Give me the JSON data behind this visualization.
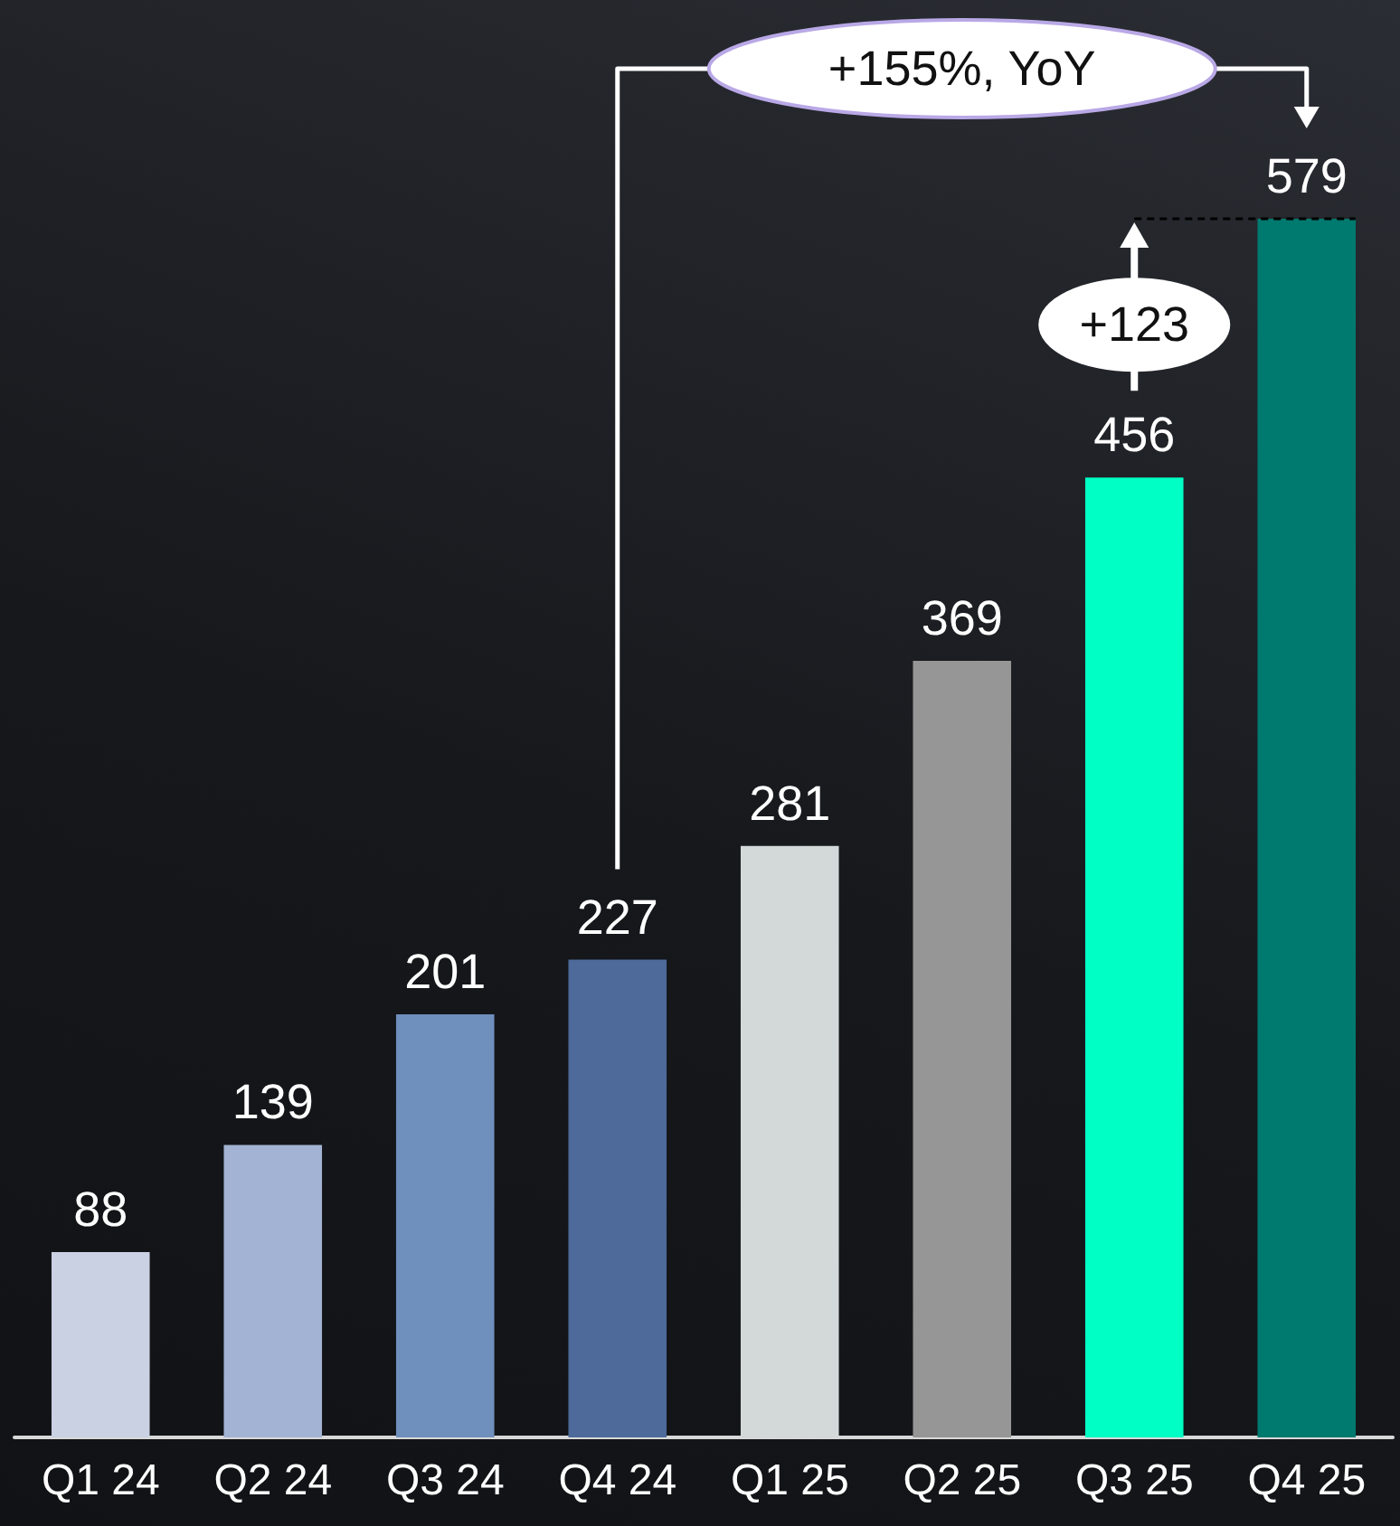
{
  "chart_data": {
    "type": "bar",
    "categories": [
      "Q1 24",
      "Q2 24",
      "Q3 24",
      "Q4 24",
      "Q1 25",
      "Q2 25",
      "Q3 25",
      "Q4 25"
    ],
    "values": [
      88,
      139,
      201,
      227,
      281,
      369,
      456,
      579
    ],
    "colors": [
      "#c9d1e3",
      "#a3b3d3",
      "#6f8fbd",
      "#4d6a9a",
      "#d3d9d9",
      "#969696",
      "#00ffc4",
      "#00796e"
    ],
    "data_labels": true,
    "annotations": [
      "+155%, YoY",
      "+123"
    ]
  }
}
